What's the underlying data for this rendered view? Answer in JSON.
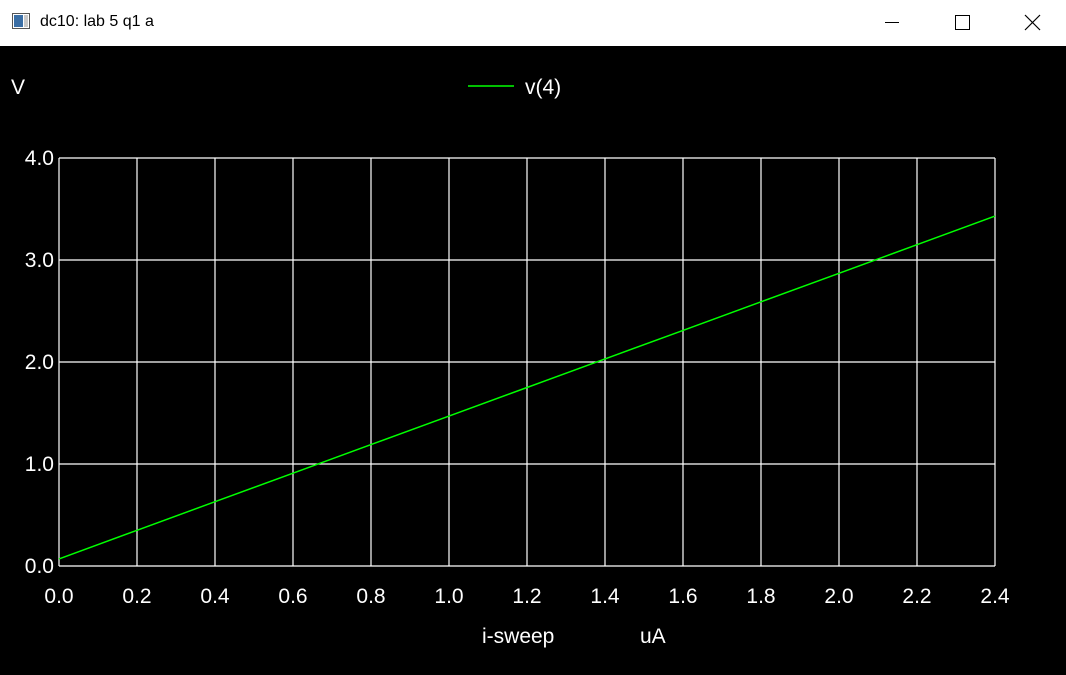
{
  "window": {
    "title": "dc10: lab 5 q1 a",
    "app_icon": "plot-window-icon",
    "controls": [
      "minimize-icon",
      "maximize-icon",
      "close-icon"
    ]
  },
  "colors": {
    "background": "#000000",
    "grid": "#ffffff",
    "text": "#ffffff",
    "series": "#00ff00"
  },
  "chart_data": {
    "type": "line",
    "title": "",
    "ylabel": "V",
    "xlabel": "i-sweep",
    "xunit": "uA",
    "xlim": [
      0.0,
      2.4
    ],
    "ylim": [
      0.0,
      4.0
    ],
    "x_ticks": [
      "0.0",
      "0.2",
      "0.4",
      "0.6",
      "0.8",
      "1.0",
      "1.2",
      "1.4",
      "1.6",
      "1.8",
      "2.0",
      "2.2",
      "2.4"
    ],
    "y_ticks": [
      "0.0",
      "1.0",
      "2.0",
      "3.0",
      "4.0"
    ],
    "grid": true,
    "legend_position": "top-center",
    "series": [
      {
        "name": "v(4)",
        "color": "#00ff00",
        "x": [
          0.0,
          0.2,
          0.4,
          0.6,
          0.8,
          1.0,
          1.2,
          1.4,
          1.6,
          1.8,
          2.0,
          2.2,
          2.4
        ],
        "y": [
          0.07,
          0.35,
          0.63,
          0.91,
          1.19,
          1.47,
          1.75,
          2.03,
          2.31,
          2.59,
          2.87,
          3.15,
          3.43
        ]
      }
    ]
  }
}
